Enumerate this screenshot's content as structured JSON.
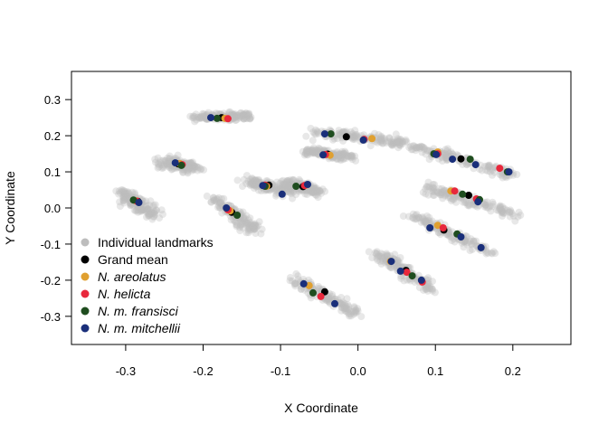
{
  "chart_data": {
    "type": "scatter",
    "xlabel": "X Coordinate",
    "ylabel": "Y Coordinate",
    "xlim": [
      -0.37,
      0.275
    ],
    "ylim": [
      -0.378,
      0.378
    ],
    "xticks": [
      -0.3,
      -0.2,
      -0.1,
      0.0,
      0.1,
      0.2
    ],
    "xtick_labels": [
      "-0.3",
      "-0.2",
      "-0.1",
      "0.0",
      "0.1",
      "0.2"
    ],
    "yticks": [
      -0.3,
      -0.2,
      -0.1,
      0.0,
      0.1,
      0.2,
      0.3
    ],
    "ytick_labels": [
      "-0.3",
      "-0.2",
      "-0.1",
      "0.0",
      "0.1",
      "0.2",
      "0.3"
    ],
    "grid": false,
    "legend_placement": "bottom-left",
    "legend": [
      {
        "label": "Individual landmarks",
        "color": "#bdbdbd",
        "italic": false
      },
      {
        "label": "Grand mean",
        "color": "#000000",
        "italic": false
      },
      {
        "label": "N. areolatus",
        "color": "#e0a030",
        "italic": true
      },
      {
        "label": "N. helicta",
        "color": "#e8283c",
        "italic": true
      },
      {
        "label": "N. m. fransisci",
        "color": "#1f4d1f",
        "italic": true
      },
      {
        "label": "N. m. mitchellii",
        "color": "#1a2f7a",
        "italic": true
      }
    ],
    "landmark_clouds": [
      {
        "x": [
          -0.215,
          -0.14
        ],
        "y": [
          0.253,
          0.253
        ],
        "spread": [
          0.006,
          0.006
        ]
      },
      {
        "x": [
          -0.25,
          -0.21
        ],
        "y": [
          0.128,
          0.11
        ],
        "spread": [
          0.007,
          0.007
        ]
      },
      {
        "x": [
          -0.305,
          -0.265
        ],
        "y": [
          0.045,
          -0.02
        ],
        "spread": [
          0.007,
          0.007
        ]
      },
      {
        "x": [
          -0.185,
          -0.135
        ],
        "y": [
          0.025,
          -0.06
        ],
        "spread": [
          0.006,
          0.007
        ]
      },
      {
        "x": [
          -0.145,
          -0.09
        ],
        "y": [
          0.075,
          0.045
        ],
        "spread": [
          0.006,
          0.007
        ]
      },
      {
        "x": [
          -0.095,
          -0.05
        ],
        "y": [
          0.07,
          0.045
        ],
        "spread": [
          0.006,
          0.007
        ]
      },
      {
        "x": [
          -0.055,
          0.06
        ],
        "y": [
          0.21,
          0.18
        ],
        "spread": [
          0.006,
          0.006
        ]
      },
      {
        "x": [
          -0.065,
          -0.01
        ],
        "y": [
          0.157,
          0.14
        ],
        "spread": [
          0.006,
          0.005
        ]
      },
      {
        "x": [
          0.07,
          0.2
        ],
        "y": [
          0.17,
          0.09
        ],
        "spread": [
          0.007,
          0.007
        ]
      },
      {
        "x": [
          0.085,
          0.205
        ],
        "y": [
          0.06,
          -0.02
        ],
        "spread": [
          0.006,
          0.007
        ]
      },
      {
        "x": [
          0.07,
          0.17
        ],
        "y": [
          -0.02,
          -0.12
        ],
        "spread": [
          0.006,
          0.006
        ]
      },
      {
        "x": [
          0.025,
          0.095
        ],
        "y": [
          -0.125,
          -0.225
        ],
        "spread": [
          0.006,
          0.006
        ]
      },
      {
        "x": [
          -0.08,
          -0.005
        ],
        "y": [
          -0.2,
          -0.29
        ],
        "spread": [
          0.006,
          0.007
        ]
      }
    ],
    "series": [
      {
        "name": "Grand mean",
        "color": "#000000",
        "x": [
          -0.176,
          -0.232,
          -0.284,
          -0.163,
          -0.115,
          -0.071,
          -0.015,
          -0.039,
          0.133,
          0.143,
          0.111,
          0.062,
          -0.043
        ],
        "y": [
          0.25,
          0.122,
          0.018,
          -0.012,
          0.063,
          0.059,
          0.197,
          0.149,
          0.136,
          0.035,
          -0.061,
          -0.173,
          -0.232
        ]
      },
      {
        "name": "N. areolatus",
        "color": "#e0a030",
        "x": [
          -0.172,
          -0.23,
          -0.287,
          -0.165,
          -0.118,
          -0.067,
          0.018,
          -0.036,
          0.103,
          0.12,
          0.103,
          0.042,
          -0.063
        ],
        "y": [
          0.248,
          0.123,
          0.02,
          -0.008,
          0.06,
          0.063,
          0.192,
          0.146,
          0.155,
          0.047,
          -0.048,
          -0.148,
          -0.215
        ]
      },
      {
        "name": "N. helicta",
        "color": "#e8283c",
        "x": [
          -0.168,
          -0.227,
          -0.285,
          -0.168,
          -0.12,
          -0.069,
          0.008,
          -0.042,
          0.103,
          0.125,
          0.11,
          0.063,
          -0.048,
          0.183,
          0.153,
          0.083
        ],
        "y": [
          0.247,
          0.12,
          0.018,
          -0.005,
          0.063,
          0.062,
          0.19,
          0.148,
          0.15,
          0.047,
          -0.055,
          -0.178,
          -0.245,
          0.11,
          0.025,
          -0.205
        ]
      },
      {
        "name": "N. m. fransisci",
        "color": "#1f4d1f",
        "x": [
          -0.182,
          -0.228,
          -0.29,
          -0.156,
          -0.12,
          -0.08,
          -0.035,
          0.098,
          0.145,
          0.135,
          0.128,
          0.07,
          -0.058,
          0.193,
          0.157
        ],
        "y": [
          0.248,
          0.118,
          0.022,
          -0.02,
          0.06,
          0.06,
          0.205,
          0.15,
          0.135,
          0.038,
          -0.072,
          -0.188,
          -0.235,
          0.1,
          0.023
        ]
      },
      {
        "name": "N. m. mitchellii",
        "color": "#1a2f7a",
        "x": [
          -0.19,
          -0.236,
          -0.283,
          -0.17,
          -0.123,
          -0.098,
          -0.065,
          -0.043,
          -0.045,
          0.007,
          0.101,
          0.122,
          0.152,
          0.195,
          0.155,
          0.093,
          0.133,
          0.159,
          0.043,
          0.055,
          0.082,
          -0.07,
          -0.03
        ],
        "y": [
          0.25,
          0.125,
          0.015,
          0.0,
          0.062,
          0.038,
          0.065,
          0.205,
          0.147,
          0.188,
          0.148,
          0.135,
          0.12,
          0.1,
          0.017,
          -0.055,
          -0.08,
          -0.11,
          -0.148,
          -0.175,
          -0.2,
          -0.21,
          -0.265
        ]
      }
    ]
  }
}
